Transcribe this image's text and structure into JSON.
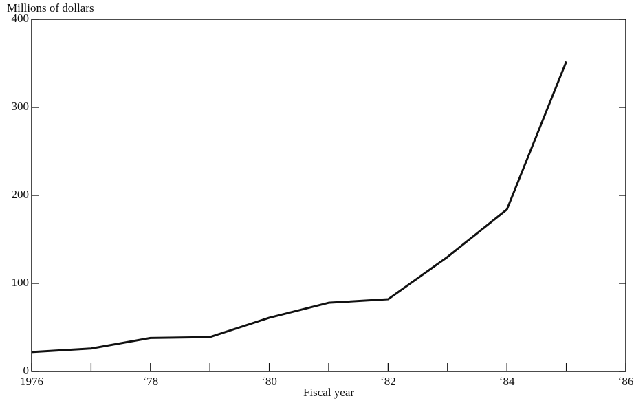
{
  "chart_data": {
    "type": "line",
    "y_label": "Millions of dollars",
    "x_label": "Fiscal year",
    "x": [
      1976,
      1977,
      1978,
      1979,
      1980,
      1981,
      1982,
      1983,
      1984,
      1985
    ],
    "series": [
      {
        "color": "#111111",
        "values": [
          22,
          26,
          38,
          39,
          61,
          78,
          82,
          130,
          184,
          352
        ]
      }
    ],
    "xlim": [
      1976,
      1986
    ],
    "xticks": [
      1976,
      {
        "value": 1978,
        "label": "‘78"
      },
      {
        "value": 1980,
        "label": "‘80"
      },
      {
        "value": 1982,
        "label": "‘82"
      },
      {
        "value": 1984,
        "label": "‘84"
      },
      {
        "value": 1986,
        "label": "‘86"
      }
    ],
    "xminor_ticks": [
      1977,
      1979,
      1981,
      1983,
      1985
    ],
    "ylim": [
      0,
      400
    ],
    "yticks": [
      0,
      100,
      200,
      300,
      400
    ]
  }
}
